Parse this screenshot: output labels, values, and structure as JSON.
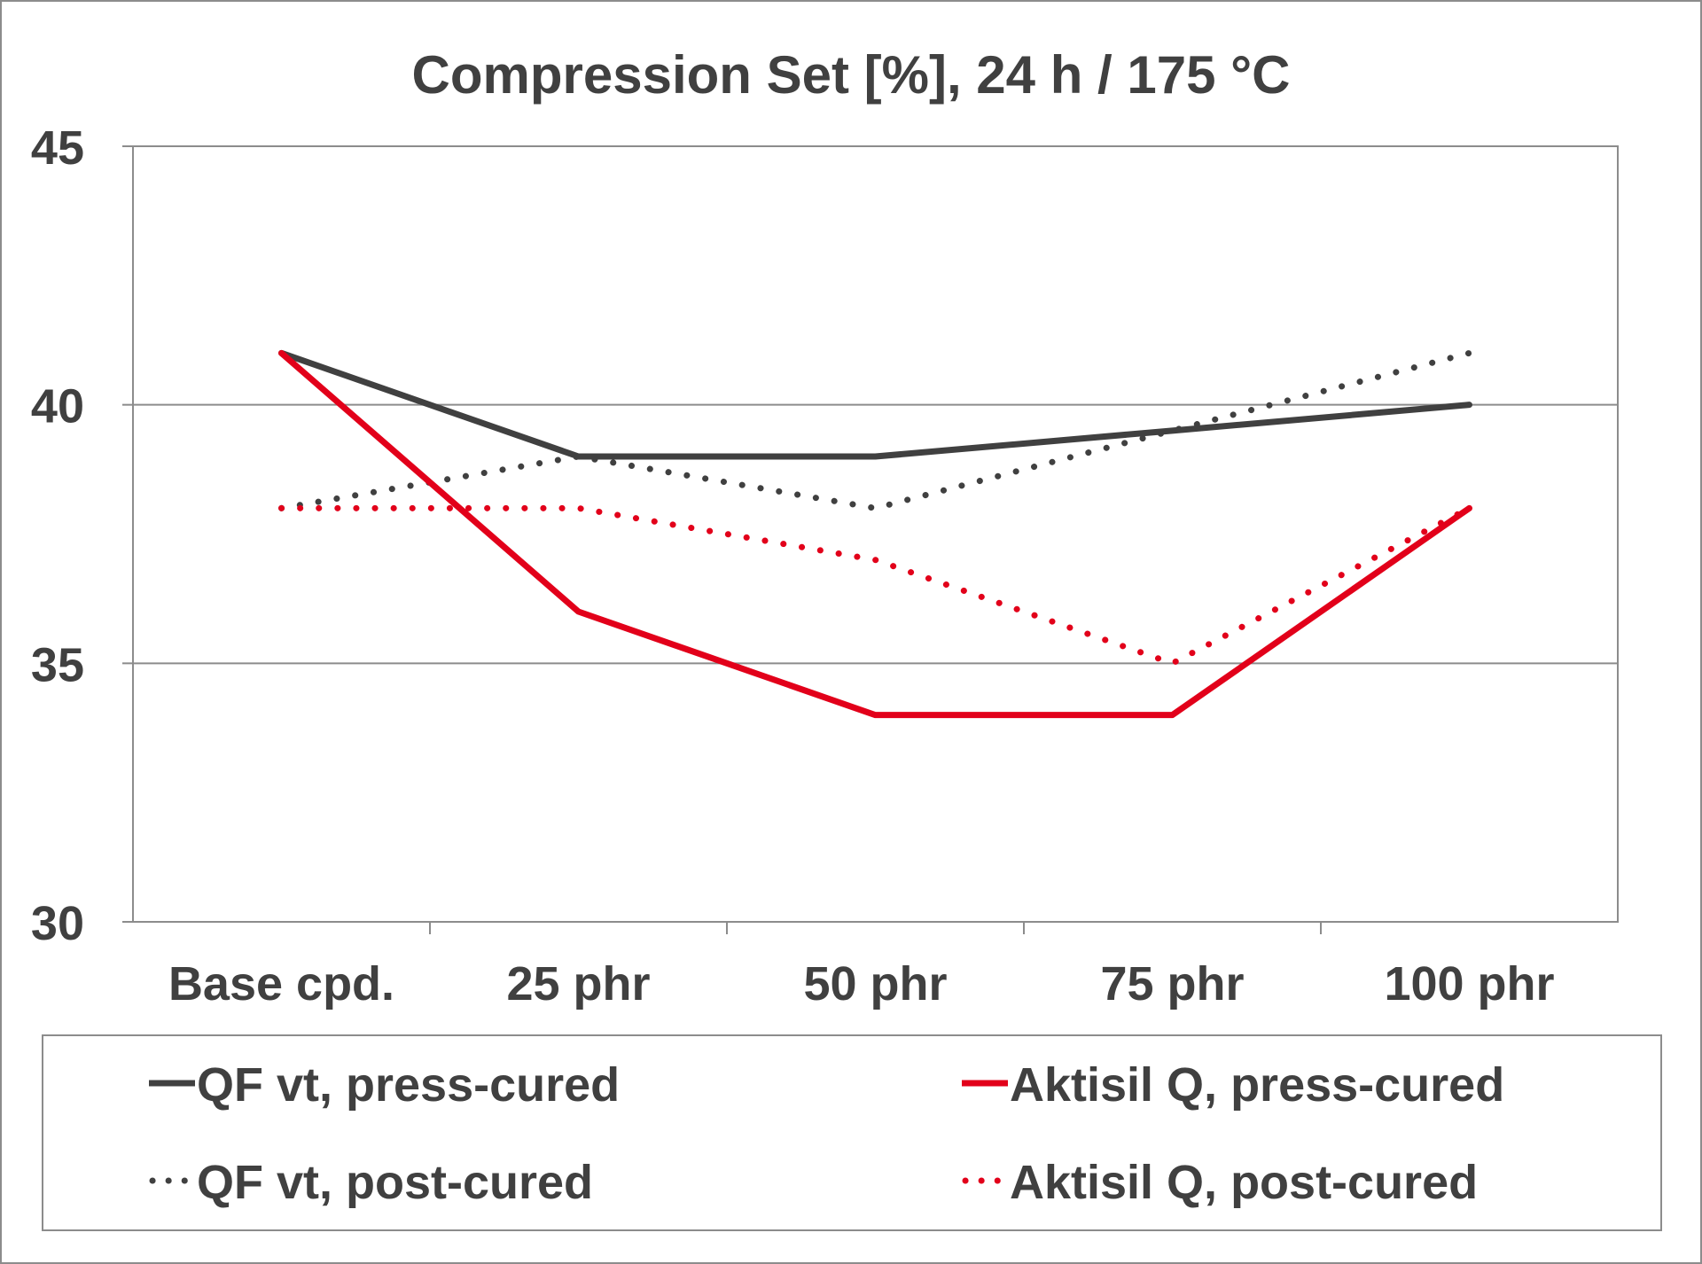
{
  "chart_data": {
    "type": "line",
    "title": "Compression Set [%], 24 h / 175 °C",
    "xlabel": "",
    "ylabel": "",
    "categories": [
      "Base cpd.",
      "25 phr",
      "50 phr",
      "75 phr",
      "100 phr"
    ],
    "ylim": [
      30,
      45
    ],
    "yticks": [
      30,
      35,
      40,
      45
    ],
    "grid": "horizontal",
    "legend_position": "bottom",
    "series": [
      {
        "name": "QF vt, press-cured",
        "values": [
          41,
          39,
          39,
          39.5,
          40
        ],
        "color": "#404040",
        "style": "solid"
      },
      {
        "name": "QF vt, post-cured",
        "values": [
          38,
          39,
          38,
          39.5,
          41
        ],
        "color": "#404040",
        "style": "dotted"
      },
      {
        "name": "Aktisil Q, press-cured",
        "values": [
          41,
          36,
          34,
          34,
          38
        ],
        "color": "#e2001a",
        "style": "solid"
      },
      {
        "name": "Aktisil Q, post-cured",
        "values": [
          38,
          38,
          37,
          35,
          38
        ],
        "color": "#e2001a",
        "style": "dotted"
      }
    ],
    "legend_order": [
      0,
      2,
      1,
      3
    ]
  }
}
